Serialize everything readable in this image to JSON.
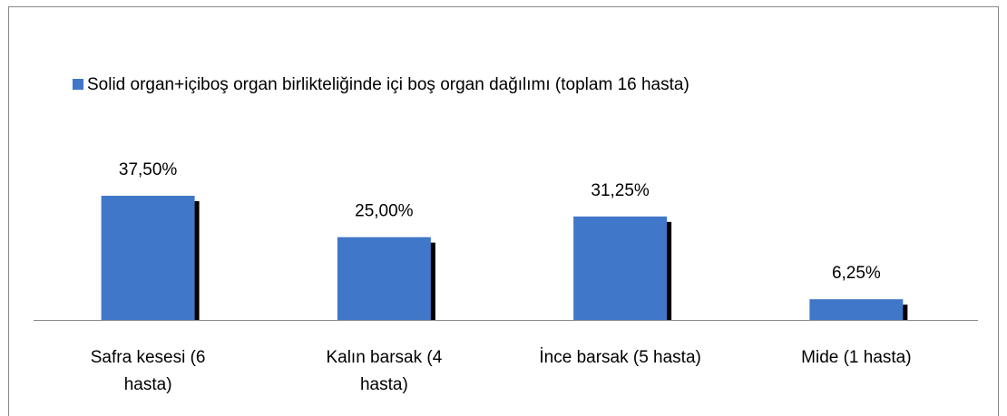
{
  "chart_data": {
    "type": "bar",
    "legend": "Solid organ+içiboş organ birlikteliğinde içi boş organ dağılımı (toplam 16 hasta)",
    "categories": [
      "Safra kesesi (6 hasta)",
      "Kalın barsak  (4 hasta)",
      "İnce barsak (5 hasta)",
      "Mide (1 hasta)"
    ],
    "values": [
      37.5,
      25,
      31.25,
      6.25
    ],
    "value_labels": [
      "37,50%",
      "25,00%",
      "31,25%",
      "6,25%"
    ],
    "color": "#4177c8"
  }
}
